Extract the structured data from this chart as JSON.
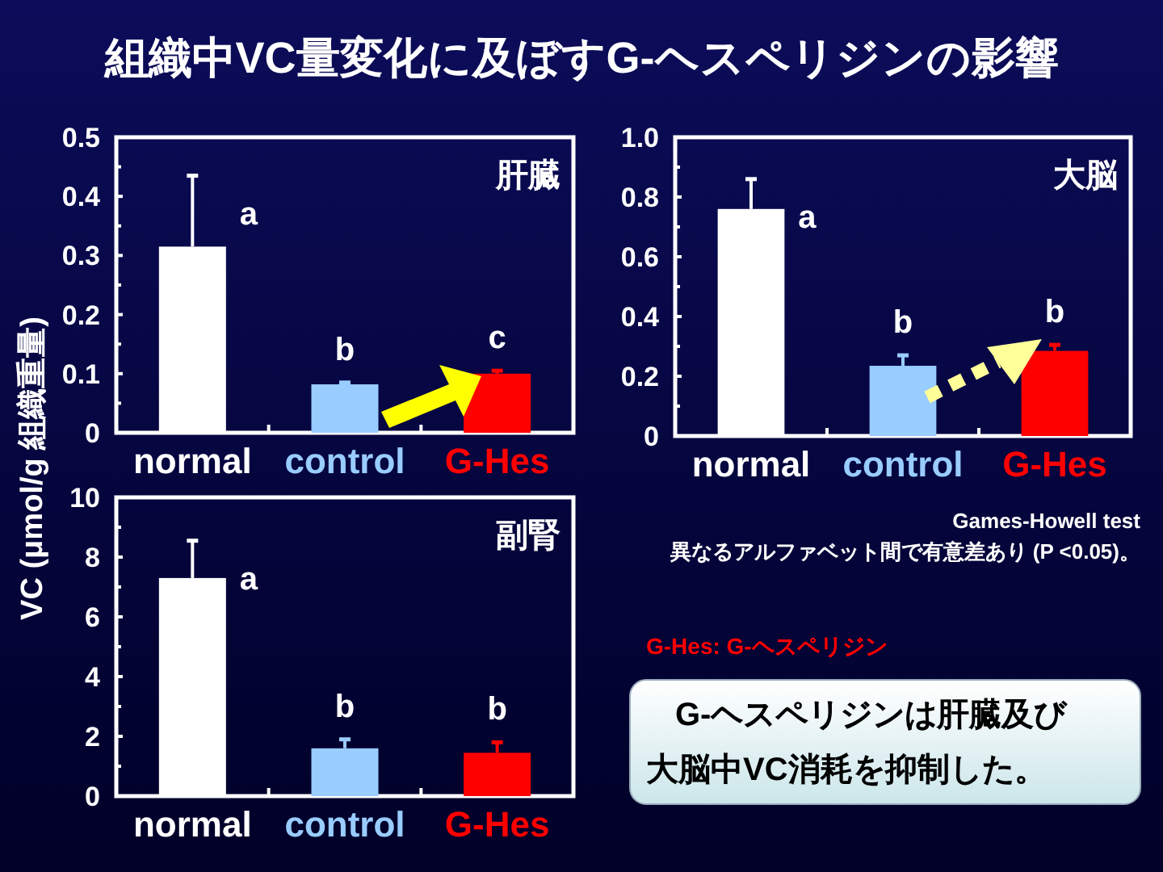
{
  "chart_data": [
    {
      "type": "bar",
      "title": "組織中VC量変化に及ぼすG-ヘスペリジンの影響",
      "ylabel": "VC (μmol/g 組織重量)",
      "categories": [
        "normal",
        "control",
        "G-Hes"
      ],
      "values": [
        0.315,
        0.082,
        0.1
      ],
      "errors": [
        0.12,
        0.003,
        0.005
      ],
      "colors": [
        "#ffffff",
        "#99ccff",
        "#ff0000"
      ],
      "ylim": [
        0,
        0.5
      ],
      "yticks": [
        0,
        0.1,
        0.2,
        0.3,
        0.4,
        0.5
      ],
      "annotations": [
        "肝臓",
        "a",
        "b",
        "c"
      ]
    },
    {
      "type": "bar",
      "categories": [
        "normal",
        "control",
        "G-Hes"
      ],
      "values": [
        0.76,
        0.235,
        0.285
      ],
      "errors": [
        0.1,
        0.035,
        0.02
      ],
      "colors": [
        "#ffffff",
        "#99ccff",
        "#ff0000"
      ],
      "ylim": [
        0,
        1
      ],
      "yticks": [
        0,
        0.2,
        0.4,
        0.6,
        0.8,
        {
          "value": 1,
          "label": "1.0"
        }
      ],
      "annotations": [
        "大脳",
        "a",
        "b",
        "b"
      ]
    },
    {
      "type": "bar",
      "categories": [
        "normal",
        "control",
        "G-Hes"
      ],
      "values": [
        7.3,
        1.6,
        1.45
      ],
      "errors": [
        1.25,
        0.3,
        0.35
      ],
      "colors": [
        "#ffffff",
        "#99ccff",
        "#ff0000"
      ],
      "ylim": [
        0,
        10
      ],
      "yticks": [
        0,
        2,
        4,
        6,
        8,
        10
      ],
      "annotations": [
        "副腎",
        "a",
        "b",
        "b"
      ]
    },
    {
      "type": "other",
      "annotations": [
        "Games-Howell test",
        "異なるアルファベット間で有意差あり (P <0.05)。",
        "G-Hes: G-ヘスペリジン",
        "G-ヘスペリジンは肝臓及び",
        "大脳中VC消耗を抑制した。"
      ]
    }
  ]
}
